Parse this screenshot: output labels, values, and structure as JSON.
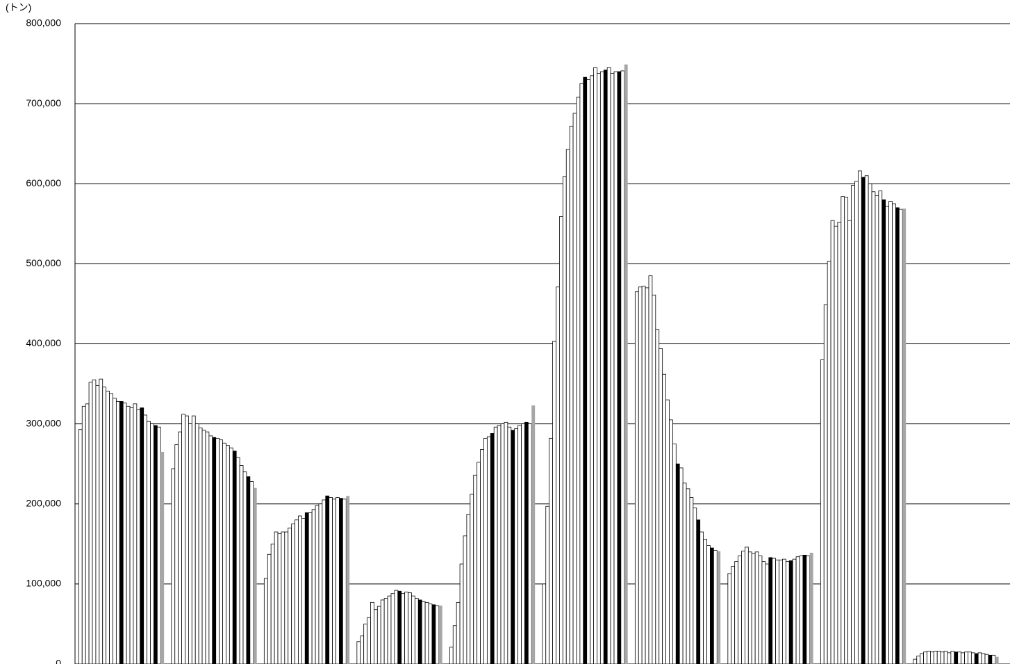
{
  "chart_data": {
    "type": "bar",
    "y_label": "(トン)",
    "categories": [
      null,
      null,
      null,
      null,
      null,
      null,
      null,
      null,
      null,
      null
    ],
    "ylim": [
      0,
      800000
    ],
    "yticks": [
      0,
      {
        "value": 100000,
        "label": "100,000"
      },
      {
        "value": 200000,
        "label": "200,000"
      },
      {
        "value": 300000,
        "label": "300,000"
      },
      {
        "value": 400000,
        "label": "400,000"
      },
      {
        "value": 500000,
        "label": "500,000"
      },
      {
        "value": 600000,
        "label": "600,000"
      },
      {
        "value": 700000,
        "label": "700,000"
      },
      {
        "value": 800000,
        "label": "800,000"
      }
    ],
    "grid": true,
    "series": [
      {
        "color": "#ffffff",
        "values": [
          293000,
          244000,
          107000,
          28000,
          21000,
          100000,
          465000,
          113000,
          380000,
          6000
        ]
      },
      {
        "color": "#ffffff",
        "values": [
          322000,
          274000,
          137000,
          35000,
          48000,
          197000,
          471000,
          122000,
          449000,
          10000
        ]
      },
      {
        "color": "#ffffff",
        "values": [
          325000,
          290000,
          150000,
          50000,
          77000,
          282000,
          472000,
          128000,
          503000,
          13000
        ]
      },
      {
        "color": "#ffffff",
        "values": [
          352000,
          312000,
          165000,
          58000,
          125000,
          403000,
          470000,
          135000,
          554000,
          15000
        ]
      },
      {
        "color": "#ffffff",
        "values": [
          355000,
          310000,
          163000,
          77000,
          160000,
          471000,
          485000,
          141000,
          547000,
          16000
        ]
      },
      {
        "color": "#ffffff",
        "values": [
          348000,
          300000,
          165000,
          68000,
          187000,
          559000,
          461000,
          146000,
          552000,
          15000
        ]
      },
      {
        "color": "#ffffff",
        "values": [
          356000,
          310000,
          165000,
          72000,
          212000,
          609000,
          418000,
          140000,
          584000,
          16000
        ]
      },
      {
        "color": "#ffffff",
        "values": [
          346000,
          300000,
          170000,
          80000,
          236000,
          643000,
          394000,
          138000,
          583000,
          16000
        ]
      },
      {
        "color": "#ffffff",
        "values": [
          341000,
          295000,
          175000,
          82000,
          252000,
          672000,
          362000,
          140000,
          554000,
          15000
        ]
      },
      {
        "color": "#ffffff",
        "values": [
          338000,
          292000,
          180000,
          85000,
          268000,
          688000,
          330000,
          135000,
          598000,
          16000
        ]
      },
      {
        "color": "#ffffff",
        "values": [
          332000,
          290000,
          185000,
          88000,
          282000,
          708000,
          305000,
          128000,
          603000,
          14000
        ]
      },
      {
        "color": "#ffffff",
        "values": [
          328000,
          285000,
          182000,
          92000,
          284000,
          725000,
          275000,
          125000,
          616000,
          16000
        ]
      },
      {
        "color": "#000000",
        "values": [
          328000,
          283000,
          189000,
          91000,
          288000,
          733000,
          250000,
          133000,
          608000,
          15000
        ]
      },
      {
        "color": "#ffffff",
        "values": [
          326000,
          282000,
          189000,
          88000,
          296000,
          730000,
          245000,
          132000,
          610000,
          15000
        ]
      },
      {
        "color": "#ffffff",
        "values": [
          322000,
          280000,
          193000,
          90000,
          298000,
          735000,
          226000,
          130000,
          600000,
          14000
        ]
      },
      {
        "color": "#ffffff",
        "values": [
          320000,
          276000,
          198000,
          89000,
          300000,
          745000,
          219000,
          130000,
          590000,
          15000
        ]
      },
      {
        "color": "#ffffff",
        "values": [
          325000,
          273000,
          200000,
          85000,
          302000,
          738000,
          208000,
          131000,
          585000,
          15000
        ]
      },
      {
        "color": "#ffffff",
        "values": [
          318000,
          270000,
          205000,
          82000,
          296000,
          740000,
          195000,
          128000,
          591000,
          14000
        ]
      },
      {
        "color": "#000000",
        "values": [
          320000,
          266000,
          210000,
          80000,
          292000,
          742000,
          180000,
          129000,
          580000,
          13000
        ]
      },
      {
        "color": "#ffffff",
        "values": [
          311000,
          258000,
          208000,
          78000,
          294000,
          745000,
          165000,
          131000,
          572000,
          14000
        ]
      },
      {
        "color": "#ffffff",
        "values": [
          303000,
          248000,
          206000,
          77000,
          298000,
          738000,
          156000,
          134000,
          578000,
          13000
        ]
      },
      {
        "color": "#ffffff",
        "values": [
          300000,
          240000,
          208000,
          75000,
          300000,
          740000,
          148000,
          135000,
          575000,
          12000
        ]
      },
      {
        "color": "#000000",
        "values": [
          298000,
          234000,
          207000,
          74000,
          302000,
          740000,
          145000,
          136000,
          570000,
          11000
        ]
      },
      {
        "color": "#ffffff",
        "values": [
          296000,
          228000,
          206000,
          73000,
          300000,
          741000,
          142000,
          135000,
          568000,
          11000
        ]
      },
      {
        "color": "#a6a6a6",
        "values": [
          265000,
          220000,
          210000,
          73000,
          323000,
          749000,
          141000,
          139000,
          569000,
          9000
        ]
      }
    ]
  }
}
